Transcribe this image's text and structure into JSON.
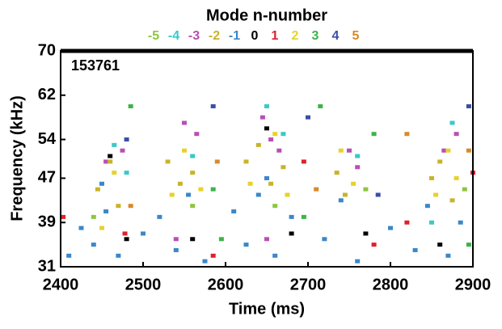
{
  "chart_data": {
    "type": "spectrogram",
    "title": "Mode n-number",
    "xlabel": "Time (ms)",
    "ylabel": "Frequency (kHz)",
    "annotation": "153761",
    "xlim": [
      2400,
      2900
    ],
    "ylim": [
      31,
      70
    ],
    "xticks": [
      2400,
      2500,
      2600,
      2700,
      2800,
      2900
    ],
    "yticks": [
      31,
      39,
      47,
      54,
      62,
      70
    ],
    "series": [
      {
        "name": "-5",
        "color": "#8dc63f",
        "x": [
          2440,
          2560,
          2660,
          2770,
          2890
        ],
        "y": [
          40,
          42,
          42,
          45,
          45
        ]
      },
      {
        "name": "-4",
        "color": "#3cc8c8",
        "x": [
          2465,
          2480,
          2560,
          2650,
          2670,
          2760,
          2875,
          2850
        ],
        "y": [
          53,
          48,
          51,
          60,
          55,
          51,
          57,
          39
        ]
      },
      {
        "name": "-3",
        "color": "#b84fb5",
        "x": [
          2455,
          2475,
          2550,
          2565,
          2645,
          2655,
          2665,
          2750,
          2760,
          2865,
          2880,
          2540,
          2650
        ],
        "y": [
          50,
          52,
          57,
          55,
          58,
          54,
          52,
          52,
          49,
          52,
          55,
          36,
          36
        ]
      },
      {
        "name": "-2",
        "color": "#c8b42a",
        "x": [
          2445,
          2460,
          2470,
          2530,
          2545,
          2560,
          2625,
          2640,
          2655,
          2670,
          2735,
          2745,
          2850,
          2860,
          2875
        ],
        "y": [
          45,
          50,
          42,
          50,
          46,
          48,
          50,
          53,
          46,
          49,
          48,
          44,
          47,
          50,
          43
        ]
      },
      {
        "name": "-1",
        "color": "#3b87c8",
        "x": [
          2410,
          2425,
          2440,
          2455,
          2470,
          2500,
          2520,
          2540,
          2555,
          2575,
          2610,
          2625,
          2640,
          2660,
          2680,
          2720,
          2740,
          2760,
          2800,
          2830,
          2845,
          2870,
          2885,
          2450,
          2650
        ],
        "y": [
          33,
          38,
          35,
          41,
          33,
          37,
          40,
          34,
          44,
          32,
          41,
          35,
          44,
          33,
          40,
          36,
          43,
          32,
          38,
          34,
          42,
          33,
          39,
          46,
          47
        ]
      },
      {
        "name": "0",
        "color": "#000000",
        "x": [
          2480,
          2560,
          2680,
          2770,
          2860,
          2460,
          2650
        ],
        "y": [
          36,
          36,
          37,
          37,
          35,
          51,
          56
        ]
      },
      {
        "name": "1",
        "color": "#e0202a",
        "x": [
          2403,
          2478,
          2585,
          2695,
          2780,
          2820,
          2900
        ],
        "y": [
          40,
          37,
          33,
          50,
          35,
          39,
          48
        ]
      },
      {
        "name": "2",
        "color": "#e8d22a",
        "x": [
          2450,
          2465,
          2535,
          2550,
          2570,
          2630,
          2660,
          2675,
          2740,
          2755,
          2855,
          2870,
          2880
        ],
        "y": [
          38,
          48,
          44,
          52,
          45,
          46,
          55,
          44,
          52,
          46,
          44,
          52,
          47
        ]
      },
      {
        "name": "3",
        "color": "#3cb44a",
        "x": [
          2485,
          2585,
          2595,
          2695,
          2715,
          2780,
          2895
        ],
        "y": [
          60,
          45,
          36,
          40,
          60,
          55,
          35
        ]
      },
      {
        "name": "4",
        "color": "#3a4ea8",
        "x": [
          2480,
          2585,
          2700,
          2785,
          2895
        ],
        "y": [
          54,
          60,
          58,
          44,
          60
        ]
      },
      {
        "name": "5",
        "color": "#d88a2a",
        "x": [
          2485,
          2590,
          2710,
          2820,
          2895
        ],
        "y": [
          42,
          50,
          45,
          55,
          52
        ]
      }
    ]
  }
}
